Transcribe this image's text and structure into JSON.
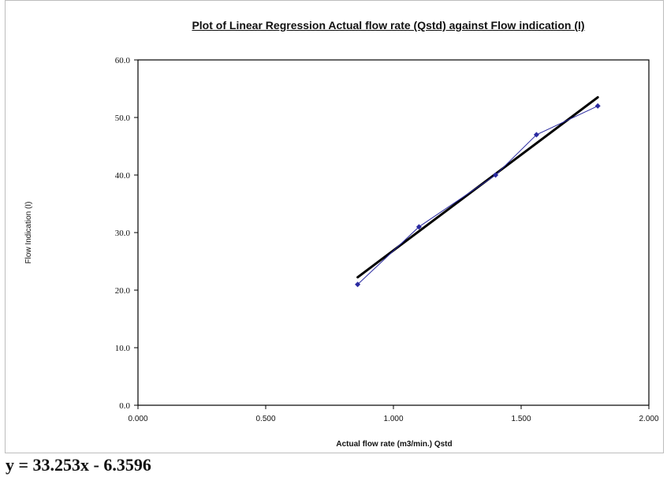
{
  "chart_data": {
    "type": "scatter",
    "title": "Plot of Linear Regression Actual flow rate (Qstd) against Flow indication (I)",
    "xlabel": "Actual flow rate (m3/min.) Qstd",
    "ylabel": "Flow Indication (I)",
    "xlim": [
      0,
      2.0
    ],
    "ylim": [
      0,
      60
    ],
    "x_ticks": [
      "0.000",
      "0.500",
      "1.000",
      "1.500",
      "2.000"
    ],
    "y_ticks": [
      "0.0",
      "10.0",
      "20.0",
      "30.0",
      "40.0",
      "50.0",
      "60.0"
    ],
    "grid": false,
    "legend": "none",
    "series": [
      {
        "kind": "data",
        "color": "#2a2aa0",
        "marker": "diamond",
        "x": [
          0.86,
          1.1,
          1.4,
          1.56,
          1.8
        ],
        "y": [
          21,
          31,
          40,
          47,
          52
        ]
      },
      {
        "kind": "trendline",
        "color": "#000000",
        "x": [
          0.86,
          1.8
        ],
        "y": [
          22.24,
          53.5
        ]
      }
    ],
    "equation": "y = 33.253x - 6.3596"
  }
}
